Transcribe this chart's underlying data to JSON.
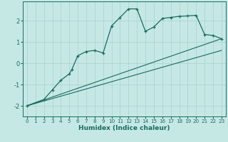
{
  "xlabel": "Humidex (Indice chaleur)",
  "bg_color": "#c5e8e5",
  "grid_color": "#afd4d0",
  "line_color": "#1a6b60",
  "xlim": [
    -0.5,
    23.5
  ],
  "ylim": [
    -2.5,
    2.9
  ],
  "xtick_labels": [
    "0",
    "1",
    "2",
    "3",
    "4",
    "5",
    "6",
    "7",
    "8",
    "9",
    "10",
    "11",
    "12",
    "13",
    "14",
    "15",
    "16",
    "17",
    "18",
    "19",
    "20",
    "21",
    "22",
    "23"
  ],
  "xtick_vals": [
    0,
    1,
    2,
    3,
    4,
    5,
    6,
    7,
    8,
    9,
    10,
    11,
    12,
    13,
    14,
    15,
    16,
    17,
    18,
    19,
    20,
    21,
    22,
    23
  ],
  "yticks": [
    -2,
    -1,
    0,
    1,
    2
  ],
  "curve1_x": [
    0,
    2,
    3,
    4,
    5,
    5.3,
    6,
    7,
    8,
    9,
    10,
    11,
    12,
    13,
    14,
    15,
    16,
    17,
    18,
    19,
    20,
    21,
    22,
    23
  ],
  "curve1_y": [
    -2.0,
    -1.7,
    -1.25,
    -0.8,
    -0.5,
    -0.3,
    0.35,
    0.55,
    0.6,
    0.48,
    1.75,
    2.15,
    2.55,
    2.55,
    1.5,
    1.7,
    2.1,
    2.15,
    2.2,
    2.22,
    2.25,
    1.35,
    1.3,
    1.15
  ],
  "line1_x": [
    0,
    23
  ],
  "line1_y": [
    -2.0,
    1.15
  ],
  "line2_x": [
    0,
    23
  ],
  "line2_y": [
    -2.0,
    0.6
  ]
}
